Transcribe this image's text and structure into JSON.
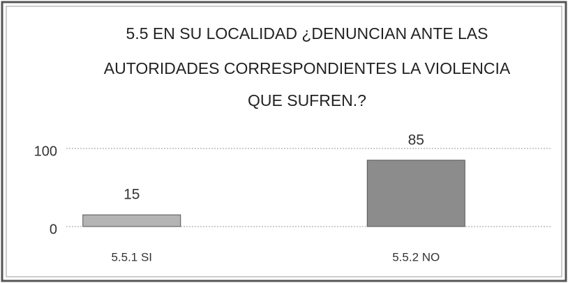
{
  "chart_data": {
    "type": "bar",
    "title": [
      "5.5 EN SU LOCALIDAD ¿DENUNCIAN ANTE LAS",
      "AUTORIDADES CORRESPONDIENTES LA VIOLENCIA",
      "QUE SUFREN.?"
    ],
    "categories": [
      "5.5.1 SI",
      "5.5.2 NO"
    ],
    "values": [
      15,
      85
    ],
    "colors": [
      "#b4b4b4",
      "#8c8c8c"
    ],
    "ylim": [
      0,
      100
    ],
    "yticks": [
      0,
      100
    ],
    "grid": true
  }
}
